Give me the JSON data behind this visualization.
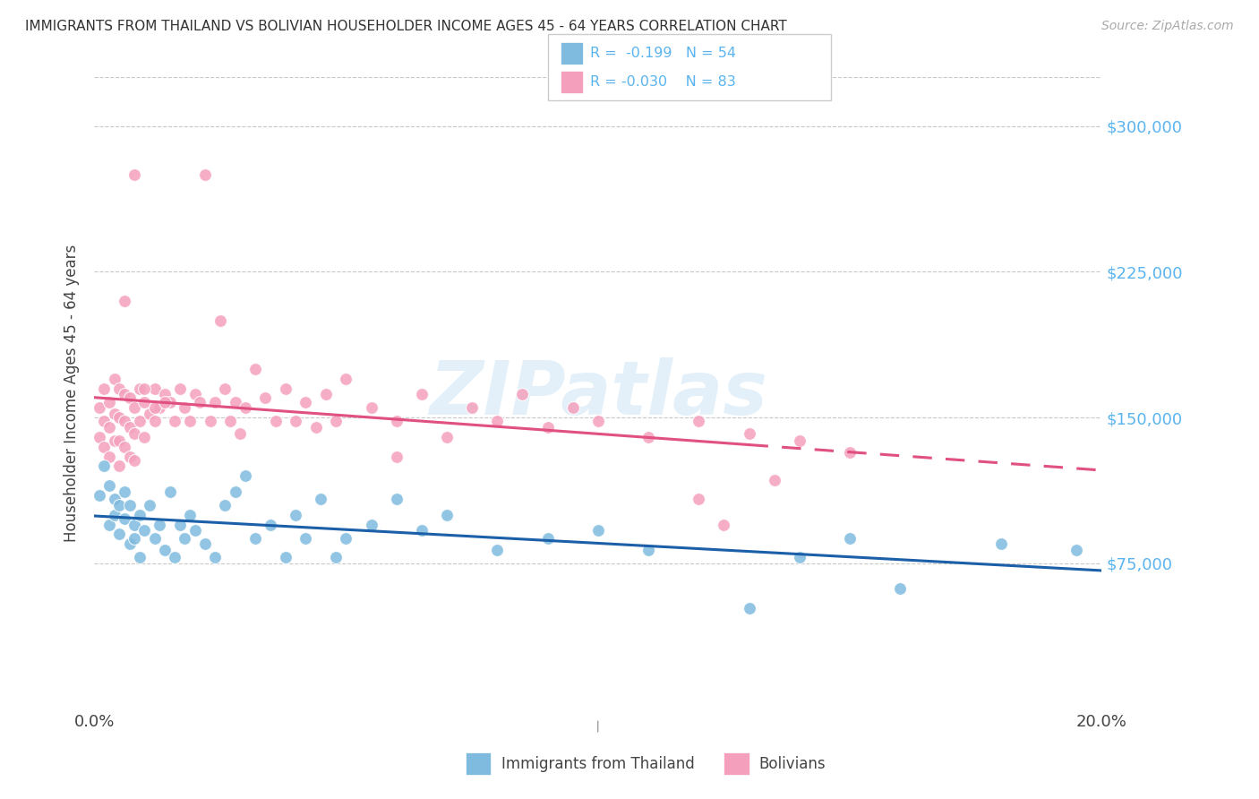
{
  "title": "IMMIGRANTS FROM THAILAND VS BOLIVIAN HOUSEHOLDER INCOME AGES 45 - 64 YEARS CORRELATION CHART",
  "source": "Source: ZipAtlas.com",
  "ylabel": "Householder Income Ages 45 - 64 years",
  "legend_label_blue": "Immigrants from Thailand",
  "legend_label_pink": "Bolivians",
  "legend_R_blue": "R =  -0.199",
  "legend_N_blue": "N = 54",
  "legend_R_pink": "R = -0.030",
  "legend_N_pink": "N = 83",
  "xlim": [
    0.0,
    0.2
  ],
  "ylim": [
    0,
    325000
  ],
  "yticks": [
    75000,
    150000,
    225000,
    300000
  ],
  "ytick_labels": [
    "$75,000",
    "$150,000",
    "$225,000",
    "$300,000"
  ],
  "xticks": [
    0.0,
    0.05,
    0.1,
    0.15,
    0.2
  ],
  "xtick_labels": [
    "0.0%",
    "",
    "",
    "",
    "20.0%"
  ],
  "color_blue": "#7fbbde",
  "color_pink": "#f4a0bc",
  "line_color_blue": "#1a5fa8",
  "line_color_pink": "#e05080",
  "watermark": "ZIPatlas",
  "background_color": "#ffffff",
  "grid_color": "#c8c8c8",
  "axis_label_color": "#5ab4f0",
  "title_color": "#333333",
  "thailand_x": [
    0.001,
    0.002,
    0.003,
    0.003,
    0.004,
    0.004,
    0.005,
    0.005,
    0.006,
    0.006,
    0.007,
    0.007,
    0.008,
    0.008,
    0.009,
    0.009,
    0.01,
    0.011,
    0.012,
    0.013,
    0.014,
    0.015,
    0.016,
    0.017,
    0.018,
    0.019,
    0.02,
    0.022,
    0.024,
    0.026,
    0.028,
    0.03,
    0.032,
    0.035,
    0.038,
    0.04,
    0.042,
    0.045,
    0.048,
    0.05,
    0.055,
    0.06,
    0.065,
    0.07,
    0.08,
    0.09,
    0.1,
    0.11,
    0.13,
    0.14,
    0.15,
    0.16,
    0.18,
    0.195
  ],
  "thailand_y": [
    110000,
    125000,
    95000,
    115000,
    108000,
    100000,
    105000,
    90000,
    98000,
    112000,
    85000,
    105000,
    95000,
    88000,
    100000,
    78000,
    92000,
    105000,
    88000,
    95000,
    82000,
    112000,
    78000,
    95000,
    88000,
    100000,
    92000,
    85000,
    78000,
    105000,
    112000,
    120000,
    88000,
    95000,
    78000,
    100000,
    88000,
    108000,
    78000,
    88000,
    95000,
    108000,
    92000,
    100000,
    82000,
    88000,
    92000,
    82000,
    52000,
    78000,
    88000,
    62000,
    85000,
    82000
  ],
  "bolivian_x": [
    0.001,
    0.001,
    0.002,
    0.002,
    0.002,
    0.003,
    0.003,
    0.003,
    0.004,
    0.004,
    0.004,
    0.005,
    0.005,
    0.005,
    0.005,
    0.006,
    0.006,
    0.006,
    0.007,
    0.007,
    0.007,
    0.008,
    0.008,
    0.008,
    0.009,
    0.009,
    0.01,
    0.01,
    0.011,
    0.012,
    0.012,
    0.013,
    0.014,
    0.015,
    0.016,
    0.017,
    0.018,
    0.019,
    0.02,
    0.021,
    0.022,
    0.023,
    0.024,
    0.025,
    0.026,
    0.027,
    0.028,
    0.029,
    0.03,
    0.032,
    0.034,
    0.036,
    0.038,
    0.04,
    0.042,
    0.044,
    0.046,
    0.048,
    0.05,
    0.055,
    0.06,
    0.065,
    0.07,
    0.075,
    0.08,
    0.085,
    0.09,
    0.095,
    0.1,
    0.11,
    0.12,
    0.13,
    0.14,
    0.15,
    0.006,
    0.008,
    0.01,
    0.012,
    0.014,
    0.12,
    0.125,
    0.135,
    0.06
  ],
  "bolivian_y": [
    155000,
    140000,
    165000,
    148000,
    135000,
    158000,
    145000,
    130000,
    170000,
    152000,
    138000,
    165000,
    150000,
    138000,
    125000,
    162000,
    148000,
    135000,
    160000,
    145000,
    130000,
    155000,
    142000,
    128000,
    165000,
    148000,
    158000,
    140000,
    152000,
    165000,
    148000,
    155000,
    162000,
    158000,
    148000,
    165000,
    155000,
    148000,
    162000,
    158000,
    275000,
    148000,
    158000,
    200000,
    165000,
    148000,
    158000,
    142000,
    155000,
    175000,
    160000,
    148000,
    165000,
    148000,
    158000,
    145000,
    162000,
    148000,
    170000,
    155000,
    148000,
    162000,
    140000,
    155000,
    148000,
    162000,
    145000,
    155000,
    148000,
    140000,
    148000,
    142000,
    138000,
    132000,
    210000,
    275000,
    165000,
    155000,
    158000,
    108000,
    95000,
    118000,
    130000
  ]
}
